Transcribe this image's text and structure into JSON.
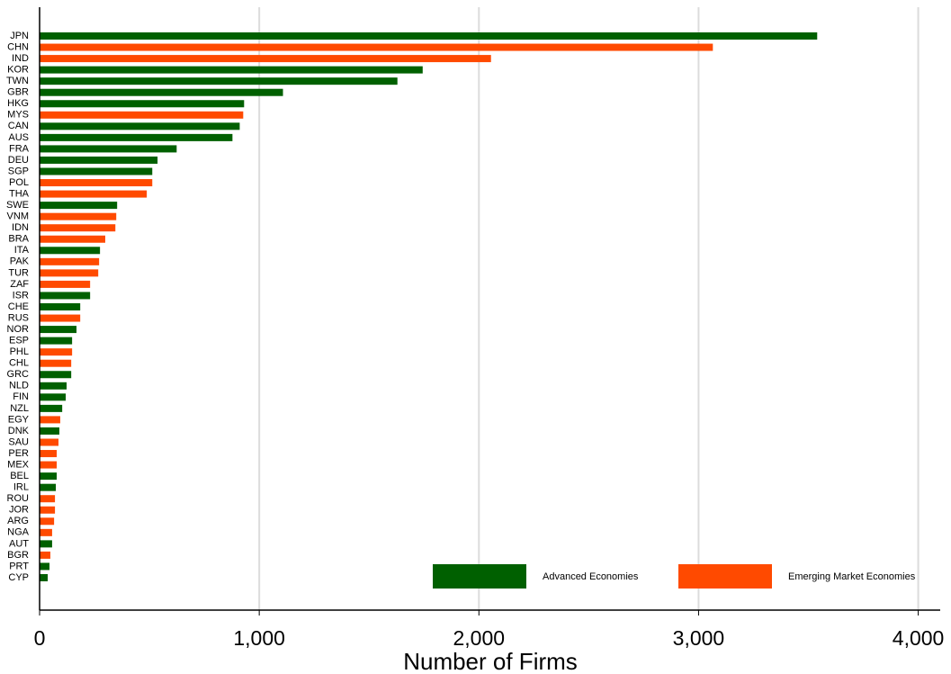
{
  "chart_data": {
    "type": "bar",
    "orientation": "horizontal",
    "x_label": "Number of Firms",
    "categories": [
      "JPN",
      "CHN",
      "IND",
      "KOR",
      "TWN",
      "GBR",
      "HKG",
      "MYS",
      "CAN",
      "AUS",
      "FRA",
      "DEU",
      "SGP",
      "POL",
      "THA",
      "SWE",
      "VNM",
      "IDN",
      "BRA",
      "ITA",
      "PAK",
      "TUR",
      "ZAF",
      "ISR",
      "CHE",
      "RUS",
      "NOR",
      "ESP",
      "PHL",
      "CHL",
      "GRC",
      "NLD",
      "FIN",
      "NZL",
      "EGY",
      "DNK",
      "SAU",
      "PER",
      "MEX",
      "BEL",
      "IRL",
      "ROU",
      "JOR",
      "ARG",
      "NGA",
      "AUT",
      "BGR",
      "PRT",
      "CYP"
    ],
    "series": [
      {
        "name": "Advanced Economies",
        "color": "#006000",
        "values": [
          3540,
          null,
          null,
          1744,
          1629,
          1108,
          931,
          null,
          911,
          878,
          624,
          537,
          513,
          null,
          null,
          353,
          null,
          null,
          null,
          275,
          null,
          null,
          null,
          230,
          185,
          null,
          168,
          148,
          null,
          null,
          144,
          123,
          119,
          103,
          null,
          90,
          null,
          null,
          null,
          78,
          74,
          null,
          null,
          null,
          null,
          57,
          null,
          45,
          37
        ]
      },
      {
        "name": "Emerging Market Economies",
        "color": "#ff4a00",
        "values": [
          null,
          3065,
          2055,
          null,
          null,
          null,
          null,
          927,
          null,
          null,
          null,
          null,
          null,
          513,
          488,
          null,
          349,
          345,
          299,
          null,
          271,
          267,
          230,
          null,
          null,
          185,
          null,
          null,
          148,
          144,
          null,
          null,
          null,
          null,
          94,
          null,
          86,
          78,
          78,
          null,
          null,
          70,
          70,
          66,
          57,
          null,
          49,
          null,
          null
        ]
      }
    ],
    "xlim": [
      0,
      4100
    ],
    "xticks": [
      0,
      {
        "value": 1000,
        "label": "1,000"
      },
      {
        "value": 2000,
        "label": "2,000"
      },
      {
        "value": 3000,
        "label": "3,000"
      },
      {
        "value": 4000,
        "label": "4,000"
      }
    ],
    "grid": true,
    "legend": "bottom-right"
  }
}
